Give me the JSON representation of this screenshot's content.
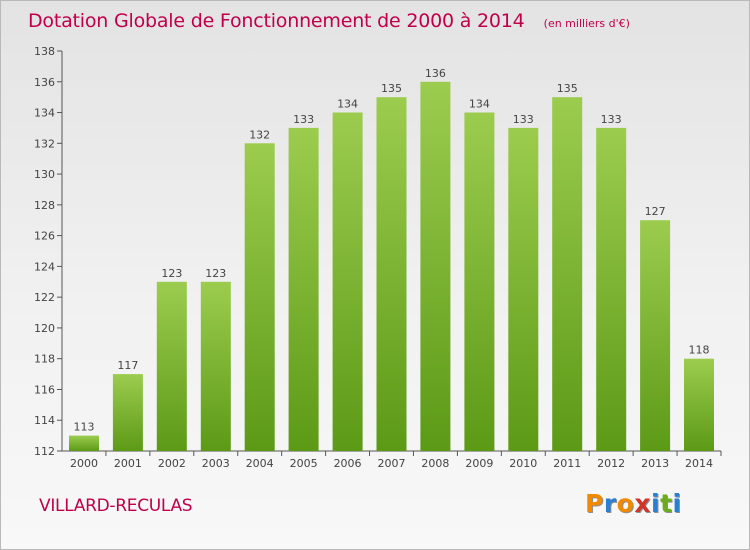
{
  "chart_data": {
    "type": "bar",
    "title": "Dotation Globale de Fonctionnement de 2000 à 2014",
    "unit_note": "(en milliers d'€)",
    "categories": [
      "2000",
      "2001",
      "2002",
      "2003",
      "2004",
      "2005",
      "2006",
      "2007",
      "2008",
      "2009",
      "2010",
      "2011",
      "2012",
      "2013",
      "2014"
    ],
    "values": [
      113,
      117,
      123,
      123,
      132,
      133,
      134,
      135,
      136,
      134,
      133,
      135,
      133,
      127,
      118
    ],
    "ylim": [
      112,
      138
    ],
    "yticks": [
      112,
      114,
      116,
      118,
      120,
      122,
      124,
      126,
      128,
      130,
      132,
      134,
      136,
      138
    ],
    "grid": false,
    "bar_color_top": "#9ccc4e",
    "bar_color_bottom": "#5c9a16"
  },
  "commune": "VILLARD-RECULAS",
  "logo": {
    "letters": [
      "P",
      "r",
      "o",
      "x",
      "i",
      "t",
      "i"
    ],
    "colors": [
      "#f08a00",
      "#2a7fd0",
      "#f08a00",
      "#d0352a",
      "#2a7fd0",
      "#6aab1f",
      "#2a7fd0"
    ]
  }
}
